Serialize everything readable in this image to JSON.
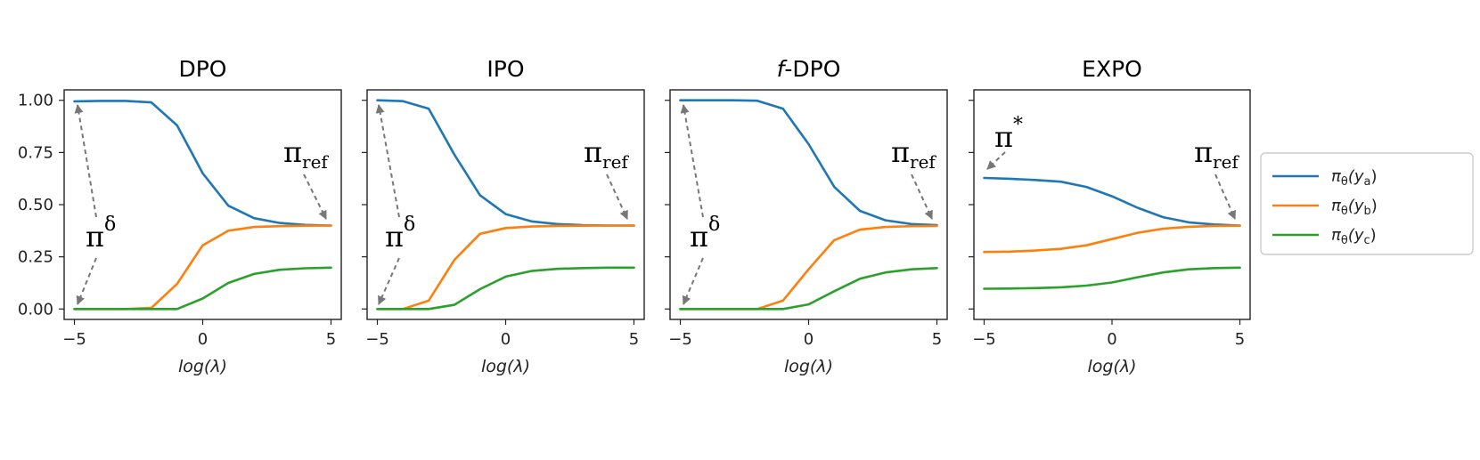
{
  "chart_data": [
    {
      "type": "line",
      "title": "DPO",
      "xlabel": "log(λ)",
      "x": [
        -5,
        -4,
        -3,
        -2,
        -1,
        0,
        1,
        2,
        3,
        4,
        5
      ],
      "xticks": [
        "−5",
        "0",
        "5"
      ],
      "yticks": [
        "0.00",
        "0.25",
        "0.50",
        "0.75",
        "1.00"
      ],
      "xlim": [
        -5.4,
        5.4
      ],
      "ylim": [
        -0.05,
        1.05
      ],
      "series": [
        {
          "name": "πθ(ya)",
          "color": "#1f77b4",
          "values": [
            0.995,
            0.997,
            0.997,
            0.99,
            0.88,
            0.65,
            0.495,
            0.435,
            0.412,
            0.403,
            0.4
          ]
        },
        {
          "name": "πθ(yb)",
          "color": "#ff7f0e",
          "values": [
            0.0,
            0.0,
            0.0,
            0.005,
            0.12,
            0.305,
            0.375,
            0.393,
            0.397,
            0.399,
            0.4
          ]
        },
        {
          "name": "πθ(yc)",
          "color": "#2ca02c",
          "values": [
            0.0,
            0.0,
            0.0,
            0.0,
            0.0,
            0.05,
            0.125,
            0.168,
            0.188,
            0.195,
            0.198
          ]
        }
      ],
      "annotations": [
        {
          "base": "π",
          "sup": "δ",
          "sub": ""
        },
        {
          "base": "π",
          "sup": "",
          "sub": "ref"
        }
      ]
    },
    {
      "type": "line",
      "title": "IPO",
      "xlabel": "log(λ)",
      "x": [
        -5,
        -4,
        -3,
        -2,
        -1,
        0,
        1,
        2,
        3,
        4,
        5
      ],
      "xticks": [
        "−5",
        "0",
        "5"
      ],
      "yticks": [
        "0.00",
        "0.25",
        "0.50",
        "0.75",
        "1.00"
      ],
      "xlim": [
        -5.4,
        5.4
      ],
      "ylim": [
        -0.05,
        1.05
      ],
      "series": [
        {
          "name": "πθ(ya)",
          "color": "#1f77b4",
          "values": [
            1.0,
            0.996,
            0.96,
            0.74,
            0.545,
            0.455,
            0.42,
            0.407,
            0.402,
            0.4,
            0.4
          ]
        },
        {
          "name": "πθ(yb)",
          "color": "#ff7f0e",
          "values": [
            0.0,
            0.0,
            0.04,
            0.235,
            0.36,
            0.388,
            0.395,
            0.398,
            0.399,
            0.4,
            0.4
          ]
        },
        {
          "name": "πθ(yc)",
          "color": "#2ca02c",
          "values": [
            0.0,
            0.0,
            0.0,
            0.02,
            0.095,
            0.155,
            0.182,
            0.192,
            0.196,
            0.198,
            0.198
          ]
        }
      ],
      "annotations": [
        {
          "base": "π",
          "sup": "δ",
          "sub": ""
        },
        {
          "base": "π",
          "sup": "",
          "sub": "ref"
        }
      ]
    },
    {
      "type": "line",
      "title": "f-DPO",
      "title_italic_prefix": "f",
      "title_rest": "-DPO",
      "xlabel": "log(λ)",
      "x": [
        -5,
        -4,
        -3,
        -2,
        -1,
        0,
        1,
        2,
        3,
        4,
        5
      ],
      "xticks": [
        "−5",
        "0",
        "5"
      ],
      "yticks": [
        "0.00",
        "0.25",
        "0.50",
        "0.75",
        "1.00"
      ],
      "xlim": [
        -5.4,
        5.4
      ],
      "ylim": [
        -0.05,
        1.05
      ],
      "series": [
        {
          "name": "πθ(ya)",
          "color": "#1f77b4",
          "values": [
            1.0,
            1.0,
            1.0,
            0.998,
            0.96,
            0.79,
            0.585,
            0.47,
            0.425,
            0.407,
            0.402
          ]
        },
        {
          "name": "πθ(yb)",
          "color": "#ff7f0e",
          "values": [
            0.0,
            0.0,
            0.0,
            0.0,
            0.04,
            0.19,
            0.33,
            0.38,
            0.393,
            0.397,
            0.398
          ]
        },
        {
          "name": "πθ(yc)",
          "color": "#2ca02c",
          "values": [
            0.0,
            0.0,
            0.0,
            0.0,
            0.0,
            0.022,
            0.085,
            0.145,
            0.175,
            0.19,
            0.196
          ]
        }
      ],
      "annotations": [
        {
          "base": "π",
          "sup": "δ",
          "sub": ""
        },
        {
          "base": "π",
          "sup": "",
          "sub": "ref"
        }
      ]
    },
    {
      "type": "line",
      "title": "EXPO",
      "xlabel": "log(λ)",
      "x": [
        -5,
        -4,
        -3,
        -2,
        -1,
        0,
        1,
        2,
        3,
        4,
        5
      ],
      "xticks": [
        "−5",
        "0",
        "5"
      ],
      "yticks": [
        "0.00",
        "0.25",
        "0.50",
        "0.75",
        "1.00"
      ],
      "xlim": [
        -5.4,
        5.4
      ],
      "ylim": [
        -0.05,
        1.05
      ],
      "series": [
        {
          "name": "πθ(ya)",
          "color": "#1f77b4",
          "values": [
            0.628,
            0.624,
            0.618,
            0.61,
            0.585,
            0.54,
            0.485,
            0.44,
            0.415,
            0.405,
            0.4
          ]
        },
        {
          "name": "πθ(yb)",
          "color": "#ff7f0e",
          "values": [
            0.273,
            0.275,
            0.28,
            0.288,
            0.305,
            0.335,
            0.365,
            0.385,
            0.394,
            0.398,
            0.399
          ]
        },
        {
          "name": "πθ(yc)",
          "color": "#2ca02c",
          "values": [
            0.097,
            0.098,
            0.1,
            0.104,
            0.112,
            0.127,
            0.152,
            0.175,
            0.19,
            0.196,
            0.198
          ]
        }
      ],
      "annotations": [
        {
          "base": "π",
          "sup": "*",
          "sub": ""
        },
        {
          "base": "π",
          "sup": "",
          "sub": "ref"
        }
      ]
    }
  ],
  "legend": {
    "placement": "right",
    "entries": [
      {
        "base": "π",
        "sub1": "θ",
        "open": "(y",
        "sub2": "a",
        "close": ")",
        "color": "#1f77b4"
      },
      {
        "base": "π",
        "sub1": "θ",
        "open": "(y",
        "sub2": "b",
        "close": ")",
        "color": "#ff7f0e"
      },
      {
        "base": "π",
        "sub1": "θ",
        "open": "(y",
        "sub2": "c",
        "close": ")",
        "color": "#2ca02c"
      }
    ]
  }
}
